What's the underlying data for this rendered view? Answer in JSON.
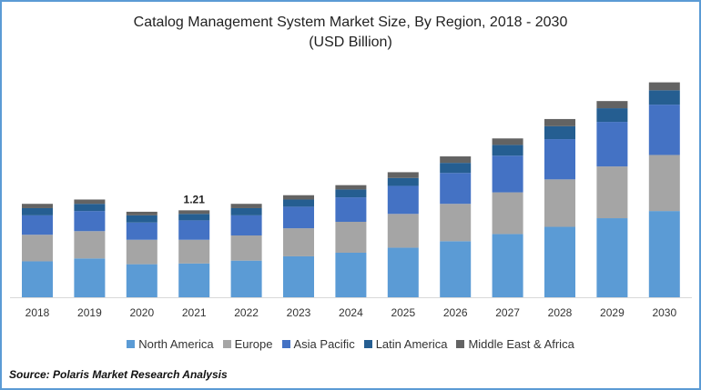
{
  "chart_data": {
    "type": "bar",
    "stacked": true,
    "title": "Catalog Management System Market Size, By Region, 2018 - 2030",
    "subtitle": "(USD Billion)",
    "xlabel": "",
    "ylabel": "",
    "ylim": [
      0,
      3.2
    ],
    "grid": false,
    "legend_position": "bottom",
    "categories": [
      "2018",
      "2019",
      "2020",
      "2021",
      "2022",
      "2023",
      "2024",
      "2025",
      "2026",
      "2027",
      "2028",
      "2029",
      "2030"
    ],
    "series": [
      {
        "name": "North America",
        "color": "#5B9BD5",
        "values": [
          0.5,
          0.54,
          0.46,
          0.47,
          0.51,
          0.57,
          0.62,
          0.69,
          0.78,
          0.88,
          0.98,
          1.1,
          1.2
        ]
      },
      {
        "name": "Europe",
        "color": "#A5A5A5",
        "values": [
          0.37,
          0.38,
          0.34,
          0.33,
          0.35,
          0.39,
          0.43,
          0.47,
          0.52,
          0.58,
          0.66,
          0.72,
          0.78
        ]
      },
      {
        "name": "Asia Pacific",
        "color": "#4472C4",
        "values": [
          0.27,
          0.28,
          0.24,
          0.27,
          0.28,
          0.3,
          0.34,
          0.39,
          0.43,
          0.51,
          0.56,
          0.62,
          0.7
        ]
      },
      {
        "name": "Latin America",
        "color": "#255E91",
        "values": [
          0.1,
          0.1,
          0.1,
          0.09,
          0.1,
          0.1,
          0.11,
          0.11,
          0.14,
          0.15,
          0.18,
          0.19,
          0.2
        ]
      },
      {
        "name": "Middle East & Africa",
        "color": "#636363",
        "values": [
          0.06,
          0.06,
          0.05,
          0.05,
          0.06,
          0.06,
          0.06,
          0.08,
          0.09,
          0.09,
          0.1,
          0.1,
          0.11
        ]
      }
    ],
    "annotations": [
      {
        "category": "2021",
        "text": "1.21"
      }
    ]
  },
  "source": "Source: Polaris  Market Research Analysis"
}
